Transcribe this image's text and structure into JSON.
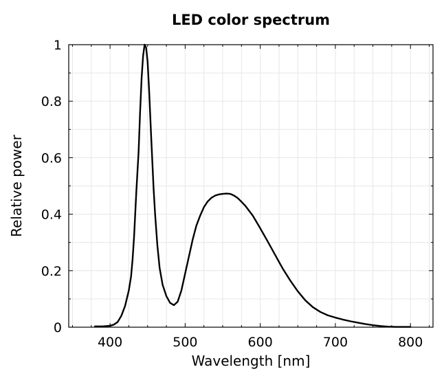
{
  "chart_data": {
    "type": "line",
    "title": "LED color spectrum",
    "xlabel": "Wavelength [nm]",
    "ylabel": "Relative power",
    "xlim": [
      345,
      830
    ],
    "ylim": [
      0,
      1
    ],
    "xticks": [
      400,
      500,
      600,
      700,
      800
    ],
    "xtick_labels": [
      "400",
      "500",
      "600",
      "700",
      "800"
    ],
    "yticks": [
      0,
      0.2,
      0.4,
      0.6,
      0.8,
      1
    ],
    "ytick_labels": [
      "0",
      "0.2",
      "0.4",
      "0.6",
      "0.8",
      "1"
    ],
    "x_minor_ticks": [
      350,
      375,
      425,
      450,
      475,
      525,
      550,
      575,
      625,
      650,
      675,
      725,
      750,
      775,
      825
    ],
    "y_minor_ticks": [
      0.1,
      0.3,
      0.5,
      0.7,
      0.9
    ],
    "grid": true,
    "color": "#000000",
    "series": [
      {
        "x": [
          380,
          390,
          400,
          405,
          410,
          415,
          420,
          425,
          428,
          430,
          432,
          435,
          438,
          440,
          442,
          444,
          446,
          448,
          450,
          452,
          455,
          458,
          460,
          463,
          466,
          470,
          475,
          480,
          485,
          490,
          495,
          500,
          505,
          510,
          515,
          520,
          525,
          530,
          535,
          540,
          545,
          550,
          555,
          560,
          565,
          570,
          575,
          580,
          590,
          600,
          610,
          620,
          630,
          640,
          650,
          660,
          670,
          680,
          690,
          700,
          710,
          720,
          730,
          740,
          750,
          760,
          770,
          780,
          790,
          800
        ],
        "y": [
          0.003,
          0.003,
          0.005,
          0.009,
          0.018,
          0.04,
          0.075,
          0.13,
          0.18,
          0.24,
          0.32,
          0.48,
          0.62,
          0.76,
          0.88,
          0.96,
          1.0,
          0.99,
          0.94,
          0.84,
          0.66,
          0.49,
          0.4,
          0.29,
          0.21,
          0.15,
          0.11,
          0.086,
          0.078,
          0.09,
          0.13,
          0.19,
          0.25,
          0.31,
          0.36,
          0.395,
          0.425,
          0.445,
          0.458,
          0.466,
          0.47,
          0.472,
          0.473,
          0.472,
          0.466,
          0.457,
          0.444,
          0.43,
          0.395,
          0.35,
          0.303,
          0.255,
          0.207,
          0.165,
          0.127,
          0.095,
          0.071,
          0.054,
          0.042,
          0.034,
          0.027,
          0.021,
          0.016,
          0.011,
          0.007,
          0.004,
          0.002,
          0.001,
          0.001,
          0.001
        ]
      }
    ]
  }
}
